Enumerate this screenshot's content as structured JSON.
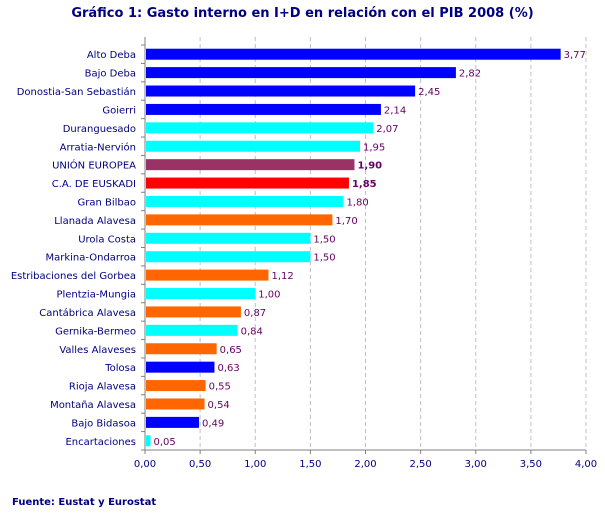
{
  "chart_data": {
    "type": "bar",
    "orientation": "horizontal",
    "title": "Gráfico 1: Gasto interno en I+D en relación con el PIB 2008 (%)",
    "source": "Fuente: Eustat y Eurostat",
    "categories": [
      "Alto Deba",
      "Bajo Deba",
      "Donostia-San Sebastián",
      "Goierri",
      "Duranguesado",
      "Arratia-Nervión",
      "UNIÓN EUROPEA",
      "C.A. DE EUSKADI",
      "Gran Bilbao",
      "Llanada Alavesa",
      "Urola Costa",
      "Markina-Ondarroa",
      "Estribaciones del Gorbea",
      "Plentzia-Mungia",
      "Cantábrica Alavesa",
      "Gernika-Bermeo",
      "Valles Alaveses",
      "Tolosa",
      "Rioja Alavesa",
      "Montaña Alavesa",
      "Bajo Bidasoa",
      "Encartaciones"
    ],
    "values": [
      3.77,
      2.82,
      2.45,
      2.14,
      2.07,
      1.95,
      1.9,
      1.85,
      1.8,
      1.7,
      1.5,
      1.5,
      1.12,
      1.0,
      0.87,
      0.84,
      0.65,
      0.63,
      0.55,
      0.54,
      0.49,
      0.05
    ],
    "value_labels": [
      "3,77",
      "2,82",
      "2,45",
      "2,14",
      "2,07",
      "1,95",
      "1,90",
      "1,85",
      "1,80",
      "1,70",
      "1,50",
      "1,50",
      "1,12",
      "1,00",
      "0,87",
      "0,84",
      "0,65",
      "0,63",
      "0,55",
      "0,54",
      "0,49",
      "0,05"
    ],
    "bold_labels": [
      false,
      false,
      false,
      false,
      false,
      false,
      true,
      true,
      false,
      false,
      false,
      false,
      false,
      false,
      false,
      false,
      false,
      false,
      false,
      false,
      false,
      false
    ],
    "bar_colors": [
      "#0000ff",
      "#0000ff",
      "#0000ff",
      "#0000ff",
      "#00ffff",
      "#00ffff",
      "#993366",
      "#ff0000",
      "#00ffff",
      "#ff6600",
      "#00ffff",
      "#00ffff",
      "#ff6600",
      "#00ffff",
      "#ff6600",
      "#00ffff",
      "#ff6600",
      "#0000ff",
      "#ff6600",
      "#ff6600",
      "#0000ff",
      "#00ffff"
    ],
    "xlim": [
      0,
      4
    ],
    "xticks": [
      0,
      0.5,
      1,
      1.5,
      2,
      2.5,
      3,
      3.5,
      4
    ],
    "xtick_labels": [
      "0,00",
      "0,50",
      "1,00",
      "1,50",
      "2,00",
      "2,50",
      "3,00",
      "3,50",
      "4,00"
    ],
    "grid": "vertical dashed",
    "legend": "none"
  }
}
